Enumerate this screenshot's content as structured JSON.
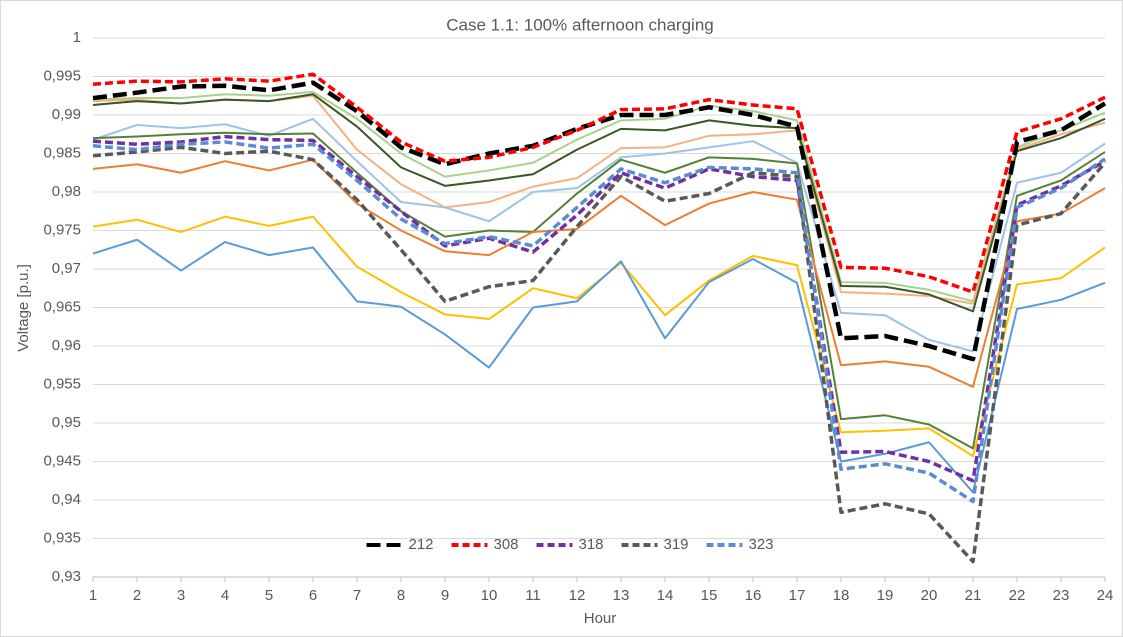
{
  "chart_data": {
    "type": "line",
    "title": "Case 1.1: 100% afternoon charging",
    "x_label": "Hour",
    "y_label": "Voltage [p.u.]",
    "x": [
      1,
      2,
      3,
      4,
      5,
      6,
      7,
      8,
      9,
      10,
      11,
      12,
      13,
      14,
      15,
      16,
      17,
      18,
      19,
      20,
      21,
      22,
      23,
      24
    ],
    "xlim": [
      1,
      24
    ],
    "xticks": [
      1,
      2,
      3,
      4,
      5,
      6,
      7,
      8,
      9,
      10,
      11,
      12,
      13,
      14,
      15,
      16,
      17,
      18,
      19,
      20,
      21,
      22,
      23,
      24
    ],
    "ylim": [
      0.93,
      1
    ],
    "yticks": [
      {
        "value": 0.93,
        "label": "0,93"
      },
      {
        "value": 0.935,
        "label": "0,935"
      },
      {
        "value": 0.94,
        "label": "0,94"
      },
      {
        "value": 0.945,
        "label": "0,945"
      },
      {
        "value": 0.95,
        "label": "0,95"
      },
      {
        "value": 0.955,
        "label": "0,955"
      },
      {
        "value": 0.96,
        "label": "0,96"
      },
      {
        "value": 0.965,
        "label": "0,965"
      },
      {
        "value": 0.97,
        "label": "0,97"
      },
      {
        "value": 0.975,
        "label": "0,975"
      },
      {
        "value": 0.98,
        "label": "0,98"
      },
      {
        "value": 0.985,
        "label": "0,985"
      },
      {
        "value": 0.99,
        "label": "0,99"
      },
      {
        "value": 0.995,
        "label": "0,995"
      },
      1
    ],
    "grid": true,
    "legend": "lower center",
    "series": [
      {
        "color": "#a9d18e",
        "values": [
          0.992,
          0.9922,
          0.9922,
          0.9927,
          0.9925,
          0.993,
          0.9895,
          0.985,
          0.982,
          0.9828,
          0.9838,
          0.9868,
          0.9893,
          0.9895,
          0.9912,
          0.9905,
          0.9893,
          0.9683,
          0.9682,
          0.9673,
          0.9658,
          0.9858,
          0.988,
          0.9903
        ]
      },
      {
        "color": "#f4b183",
        "values": [
          0.9918,
          0.992,
          0.9915,
          0.992,
          0.9918,
          0.9925,
          0.9855,
          0.981,
          0.978,
          0.9787,
          0.9807,
          0.9818,
          0.9857,
          0.9858,
          0.9873,
          0.9875,
          0.988,
          0.967,
          0.9668,
          0.9665,
          0.9655,
          0.9855,
          0.9875,
          0.989
        ]
      },
      {
        "color": "#385723",
        "values": [
          0.9913,
          0.9918,
          0.9915,
          0.992,
          0.9918,
          0.9927,
          0.9885,
          0.9832,
          0.9808,
          0.9815,
          0.9823,
          0.9855,
          0.9882,
          0.988,
          0.9893,
          0.9886,
          0.9883,
          0.9678,
          0.9677,
          0.9667,
          0.9645,
          0.9853,
          0.987,
          0.9895
        ]
      },
      {
        "color": "#9dc3e6",
        "values": [
          0.9868,
          0.9887,
          0.9883,
          0.9888,
          0.9873,
          0.9895,
          0.984,
          0.9787,
          0.978,
          0.9762,
          0.98,
          0.9805,
          0.9845,
          0.985,
          0.9858,
          0.9866,
          0.9838,
          0.9643,
          0.964,
          0.9608,
          0.9593,
          0.9812,
          0.9825,
          0.9863
        ]
      },
      {
        "color": "#548235",
        "values": [
          0.987,
          0.9872,
          0.9875,
          0.9877,
          0.9875,
          0.9876,
          0.9825,
          0.9775,
          0.9742,
          0.975,
          0.9748,
          0.9798,
          0.9842,
          0.9825,
          0.9845,
          0.9843,
          0.9837,
          0.9505,
          0.951,
          0.9498,
          0.9467,
          0.9795,
          0.9815,
          0.9852
        ]
      },
      {
        "color": "#ed7d31",
        "values": [
          0.983,
          0.9836,
          0.9825,
          0.984,
          0.9828,
          0.9842,
          0.9785,
          0.975,
          0.9723,
          0.9718,
          0.9748,
          0.9752,
          0.9795,
          0.9757,
          0.9785,
          0.98,
          0.979,
          0.9575,
          0.958,
          0.9573,
          0.9547,
          0.9762,
          0.9772,
          0.9805
        ]
      },
      {
        "color": "#ffc000",
        "values": [
          0.9755,
          0.9764,
          0.9748,
          0.9768,
          0.9756,
          0.9768,
          0.9703,
          0.967,
          0.9641,
          0.9635,
          0.9675,
          0.9662,
          0.9708,
          0.964,
          0.9685,
          0.9717,
          0.9705,
          0.9488,
          0.949,
          0.9493,
          0.9457,
          0.968,
          0.9688,
          0.9728
        ]
      },
      {
        "color": "#5b9bd5",
        "values": [
          0.972,
          0.9738,
          0.9698,
          0.9735,
          0.9718,
          0.9728,
          0.9658,
          0.9651,
          0.9615,
          0.9572,
          0.965,
          0.9658,
          0.971,
          0.961,
          0.9683,
          0.9713,
          0.9682,
          0.945,
          0.946,
          0.9475,
          0.941,
          0.9648,
          0.966,
          0.9682
        ]
      },
      {
        "name": "212",
        "color": "#000000",
        "dashed": true,
        "values": [
          0.9922,
          0.9929,
          0.9937,
          0.9938,
          0.9932,
          0.9942,
          0.9905,
          0.9858,
          0.9836,
          0.985,
          0.986,
          0.9882,
          0.99,
          0.99,
          0.991,
          0.99,
          0.9885,
          0.961,
          0.9613,
          0.96,
          0.9583,
          0.9865,
          0.988,
          0.9915
        ]
      },
      {
        "name": "308",
        "color": "#ff0000",
        "dashed": true,
        "values": [
          0.994,
          0.9944,
          0.9943,
          0.9947,
          0.9944,
          0.9953,
          0.991,
          0.9865,
          0.984,
          0.9845,
          0.9858,
          0.988,
          0.9907,
          0.9908,
          0.992,
          0.9913,
          0.9908,
          0.9702,
          0.9701,
          0.969,
          0.967,
          0.9878,
          0.9895,
          0.9923
        ]
      },
      {
        "name": "318",
        "color": "#7030a0",
        "dashed": true,
        "values": [
          0.9866,
          0.9862,
          0.9865,
          0.9872,
          0.9868,
          0.9867,
          0.982,
          0.9775,
          0.973,
          0.974,
          0.9722,
          0.977,
          0.9825,
          0.9805,
          0.983,
          0.982,
          0.9815,
          0.9462,
          0.9463,
          0.945,
          0.9425,
          0.9783,
          0.9808,
          0.984
        ]
      },
      {
        "name": "319",
        "color": "#595959",
        "dashed": true,
        "values": [
          0.9847,
          0.9852,
          0.9858,
          0.985,
          0.9853,
          0.9842,
          0.979,
          0.9725,
          0.9658,
          0.9677,
          0.9685,
          0.9755,
          0.982,
          0.9788,
          0.9798,
          0.9825,
          0.982,
          0.9384,
          0.9395,
          0.9382,
          0.932,
          0.9757,
          0.9772,
          0.9838
        ]
      },
      {
        "name": "323",
        "color": "#5b8bd5",
        "dashed": true,
        "values": [
          0.986,
          0.9855,
          0.9862,
          0.9865,
          0.9857,
          0.9862,
          0.9815,
          0.9765,
          0.9733,
          0.9742,
          0.973,
          0.978,
          0.983,
          0.9812,
          0.9832,
          0.983,
          0.9825,
          0.944,
          0.9447,
          0.9435,
          0.9398,
          0.978,
          0.9805,
          0.9843
        ]
      }
    ]
  }
}
